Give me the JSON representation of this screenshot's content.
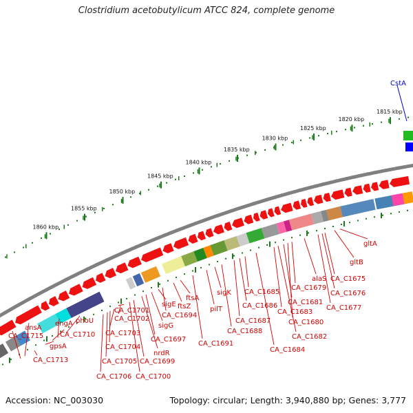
{
  "title": "Clostridium acetobutylicum ATCC 824, complete genome",
  "footer": {
    "accession": "Accession: NC_003030",
    "summary": "Topology: circular; Length: 3,940,880 bp; Genes: 3,777"
  },
  "scale": {
    "unit": "kbp",
    "ticks": [
      "1815 kbp",
      "1820 kbp",
      "1825 kbp",
      "1830 kbp",
      "1835 kbp",
      "1840 kbp",
      "1845 kbp",
      "1850 kbp",
      "1855 kbp",
      "1860 kbp"
    ]
  },
  "colors": {
    "gene_arrow": "#ee1111",
    "label": "#d00000",
    "backbone": "#808080",
    "special_label": "#0000cc"
  },
  "special_feature": {
    "label": "CstA"
  },
  "gene_labels": [
    "ansA",
    "CA_C1715",
    "gpsA",
    "CA_C1713",
    "engA",
    "phoU",
    "CA_C1710",
    "CA_C1706",
    "CA_C1705",
    "CA_C1704",
    "CA_C1703",
    "CA_C1702",
    "CA_C1701",
    "CA_C1700",
    "CA_C1699",
    "nrdR",
    "CA_C1697",
    "sigG",
    "sigE",
    "CA_C1694",
    "ftsZ",
    "ftsA",
    "CA_C1691",
    "pilT",
    "sigK",
    "CA_C1688",
    "CA_C1687",
    "CA_C1686",
    "CA_C1685",
    "CA_C1684",
    "CA_C1683",
    "CA_C1682",
    "CA_C1681",
    "CA_C1680",
    "CA_C1679",
    "alaS",
    "CA_C1677",
    "CA_C1676",
    "CA_C1675",
    "gltB",
    "gltA"
  ]
}
